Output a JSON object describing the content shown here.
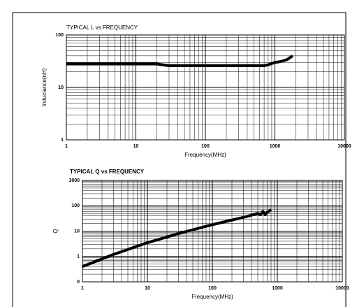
{
  "chart_data": [
    {
      "type": "line",
      "title": "TYPICAL L vs FREQUENCY",
      "xlabel": "Frequency(MHz)",
      "ylabel": "Inductance(nH)",
      "x": [
        1,
        10,
        20,
        30,
        50,
        100,
        300,
        700,
        800,
        1000,
        1200,
        1500,
        1800
      ],
      "series": [
        {
          "color": "#000000",
          "values": [
            28,
            28,
            28,
            26,
            26,
            26,
            26,
            26,
            27,
            30,
            31,
            34,
            40
          ]
        }
      ],
      "xlim": [
        1,
        10000
      ],
      "ylim": [
        1,
        100
      ],
      "xticks": [
        1,
        10,
        100,
        1000,
        10000
      ],
      "yticks": [
        1,
        10,
        100
      ],
      "xlog": true,
      "ylog": true,
      "grid": true,
      "minor_grid": true,
      "title_bold": false
    },
    {
      "type": "line",
      "title": "TYPICAL Q vs FREQUENCY",
      "xlabel": "Frequency(MHz)",
      "ylabel": "Q",
      "x": [
        1,
        3,
        10,
        30,
        100,
        300,
        500,
        550,
        600,
        650,
        700,
        800
      ],
      "series": [
        {
          "color": "#000000",
          "values": [
            0.4,
            1.2,
            3.5,
            8,
            18,
            35,
            50,
            45,
            60,
            45,
            55,
            70
          ]
        }
      ],
      "xlim": [
        1,
        10000
      ],
      "ylim": [
        0.1,
        1000
      ],
      "xticks": [
        1,
        10,
        100,
        1000,
        10000
      ],
      "yticks": [
        {
          "value": 0.1,
          "label": "0"
        },
        1,
        10,
        100,
        1000
      ],
      "xlog": true,
      "ylog": true,
      "grid": true,
      "minor_grid": true,
      "title_bold": true
    }
  ]
}
